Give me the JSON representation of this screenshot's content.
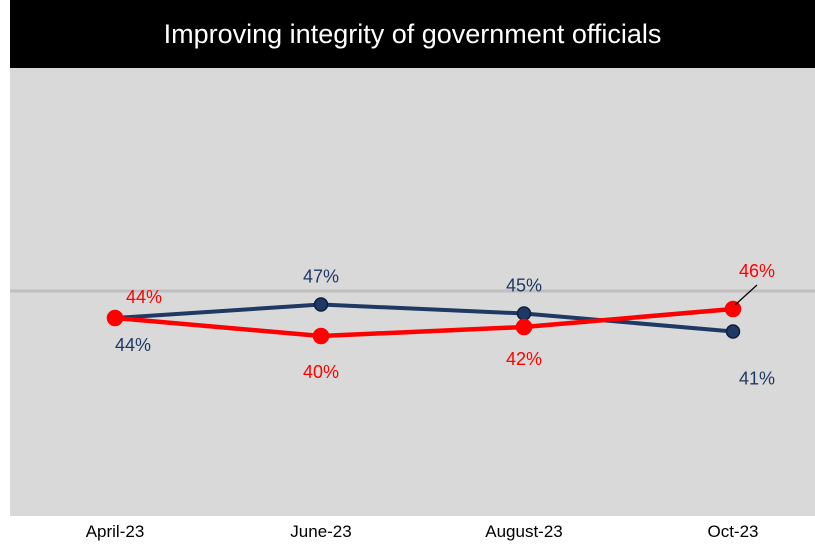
{
  "chart_data": {
    "type": "line",
    "title": "Improving integrity of government officials",
    "categories": [
      "April-23",
      "June-23",
      "August-23",
      "Oct-23"
    ],
    "series": [
      {
        "values": [
          44,
          47,
          45,
          41
        ],
        "labels": [
          "44%",
          "47%",
          "45%",
          "41%"
        ],
        "color": "#1f3864"
      },
      {
        "values": [
          44,
          40,
          42,
          46
        ],
        "labels": [
          "44%",
          "40%",
          "42%",
          "46%"
        ],
        "color": "#ff0000"
      }
    ],
    "reference_line": 50,
    "reference_line_color": "#bfbfbf",
    "ylim": [
      20,
      75
    ],
    "grid": false
  }
}
